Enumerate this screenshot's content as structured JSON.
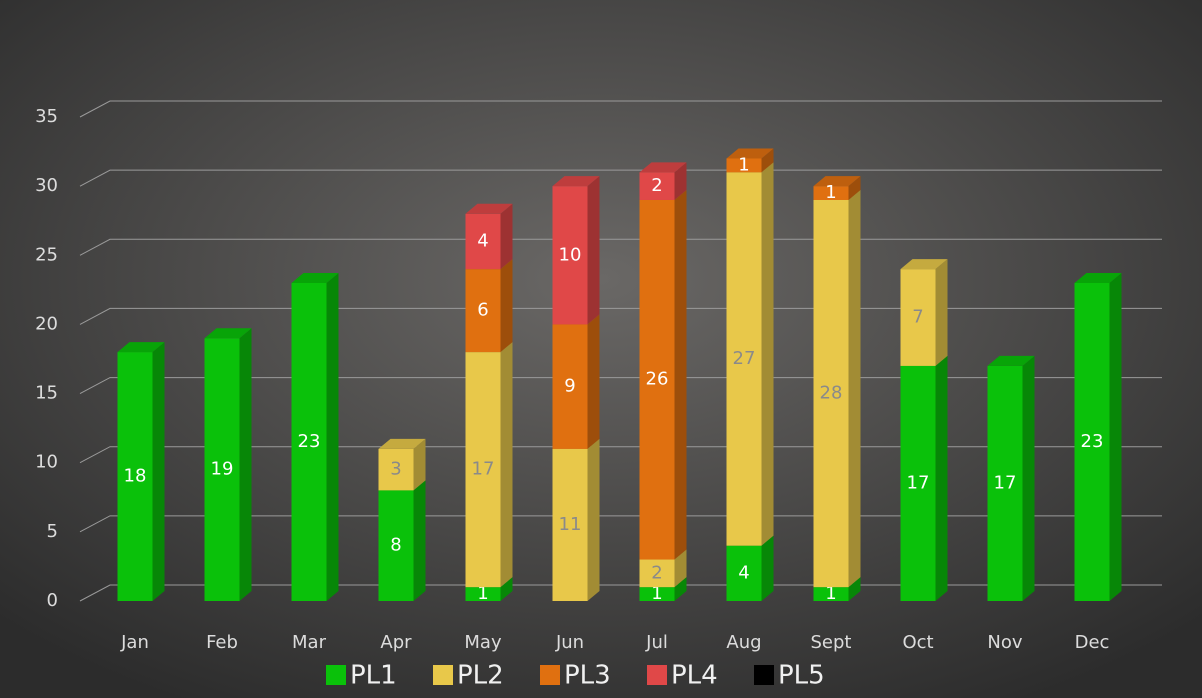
{
  "chart_data": {
    "type": "bar",
    "stacked": true,
    "categories": [
      "Jan",
      "Feb",
      "Mar",
      "Apr",
      "May",
      "Jun",
      "Jul",
      "Aug",
      "Sept",
      "Oct",
      "Nov",
      "Dec"
    ],
    "series": [
      {
        "name": "PL1",
        "color": "#0ac10a",
        "values": [
          18,
          19,
          23,
          8,
          1,
          null,
          1,
          4,
          1,
          17,
          17,
          23
        ]
      },
      {
        "name": "PL2",
        "color": "#e8c84a",
        "values": [
          null,
          null,
          null,
          3,
          17,
          11,
          2,
          27,
          28,
          7,
          null,
          null
        ]
      },
      {
        "name": "PL3",
        "color": "#e07010",
        "values": [
          null,
          null,
          null,
          null,
          6,
          9,
          26,
          1,
          1,
          null,
          null,
          null
        ]
      },
      {
        "name": "PL4",
        "color": "#e04848",
        "values": [
          null,
          null,
          null,
          null,
          4,
          10,
          2,
          null,
          null,
          null,
          null,
          null
        ]
      },
      {
        "name": "PL5",
        "color": "#000000",
        "values": [
          null,
          null,
          null,
          null,
          null,
          null,
          null,
          null,
          null,
          null,
          null,
          null
        ]
      }
    ],
    "ylim": [
      0,
      35
    ],
    "yticks": [
      0,
      5,
      10,
      15,
      20,
      25,
      30,
      35
    ],
    "grid": true,
    "legend": "bottom"
  }
}
